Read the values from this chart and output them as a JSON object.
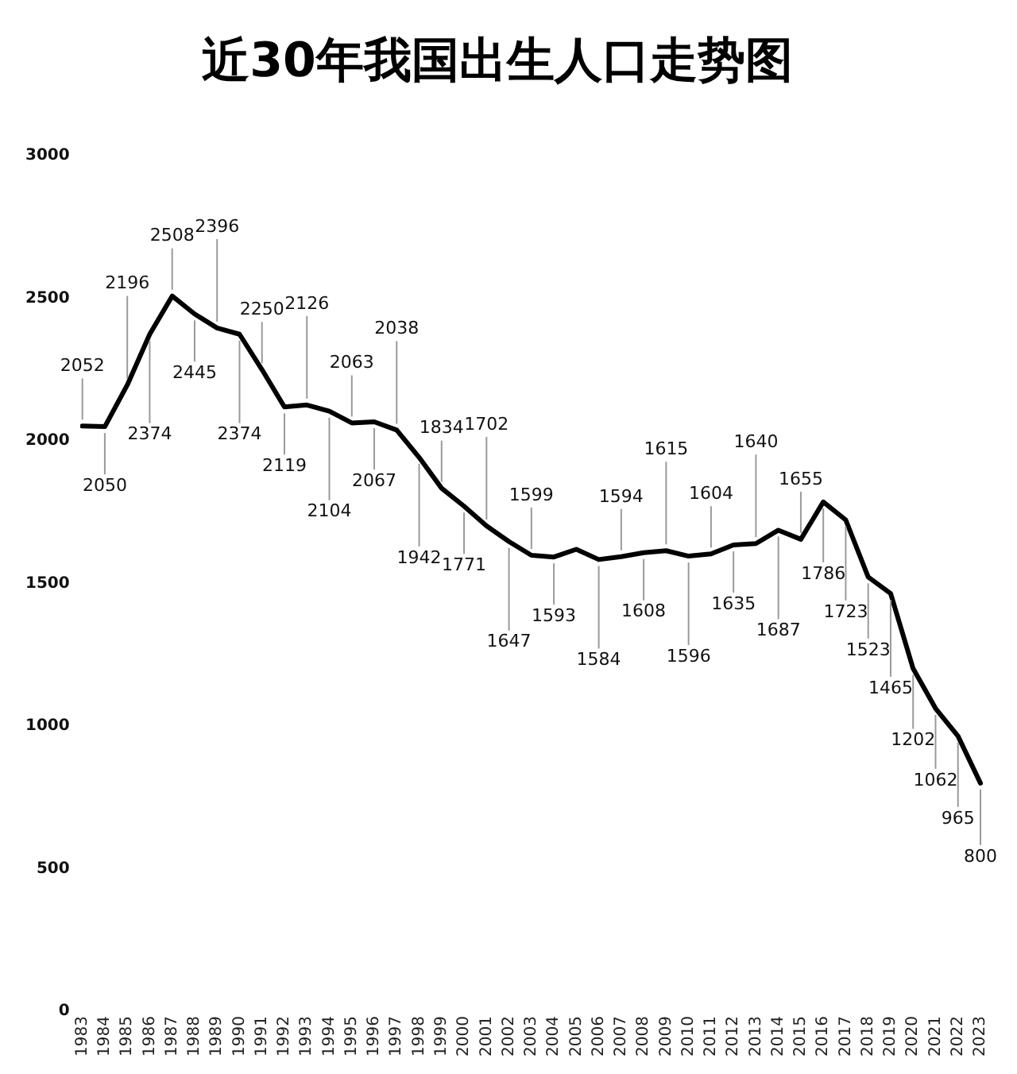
{
  "chart_data": {
    "type": "line",
    "title": "近30年我国出生人口走势图",
    "categories": [
      "1983",
      "1984",
      "1985",
      "1986",
      "1987",
      "1988",
      "1989",
      "1990",
      "1991",
      "1992",
      "1993",
      "1994",
      "1995",
      "1996",
      "1997",
      "1998",
      "1999",
      "2000",
      "2001",
      "2002",
      "2003",
      "2004",
      "2005",
      "2006",
      "2007",
      "2008",
      "2009",
      "2010",
      "2011",
      "2012",
      "2013",
      "2014",
      "2015",
      "2016",
      "2017",
      "2018",
      "2019",
      "2020",
      "2021",
      "2022",
      "2023"
    ],
    "series": [
      {
        "color": "#000000",
        "values": [
          2052,
          2050,
          2196,
          2374,
          2508,
          2445,
          2396,
          2374,
          2250,
          2119,
          2126,
          2104,
          2063,
          2067,
          2038,
          1942,
          1834,
          1771,
          1702,
          1647,
          1599,
          1593,
          1620,
          1584,
          1594,
          1608,
          1615,
          1596,
          1604,
          1635,
          1640,
          1687,
          1655,
          1786,
          1723,
          1523,
          1465,
          1202,
          1062,
          965,
          800
        ],
        "value_labels": [
          "2052",
          "2050",
          "2196",
          "2374",
          "2508",
          "2445",
          "2396",
          "2374",
          "2250",
          "2119",
          "2126",
          "2104",
          "2063",
          "2067",
          "2038",
          "1942",
          "1834",
          "1771",
          "1702",
          "1647",
          "1599",
          "1593",
          null,
          "1584",
          "1594",
          "1608",
          "1615",
          "1596",
          "1604",
          "1635",
          "1640",
          "1687",
          "1655",
          "1786",
          "1723",
          "1523",
          "1465",
          "1202",
          "1062",
          "965",
          "800"
        ]
      }
    ],
    "ylim": [
      0,
      3000
    ],
    "yticks": [
      0,
      500,
      1000,
      1500,
      2000,
      2500,
      3000
    ],
    "grid": false,
    "legend": false,
    "marker": "none",
    "line_style": "solid"
  }
}
